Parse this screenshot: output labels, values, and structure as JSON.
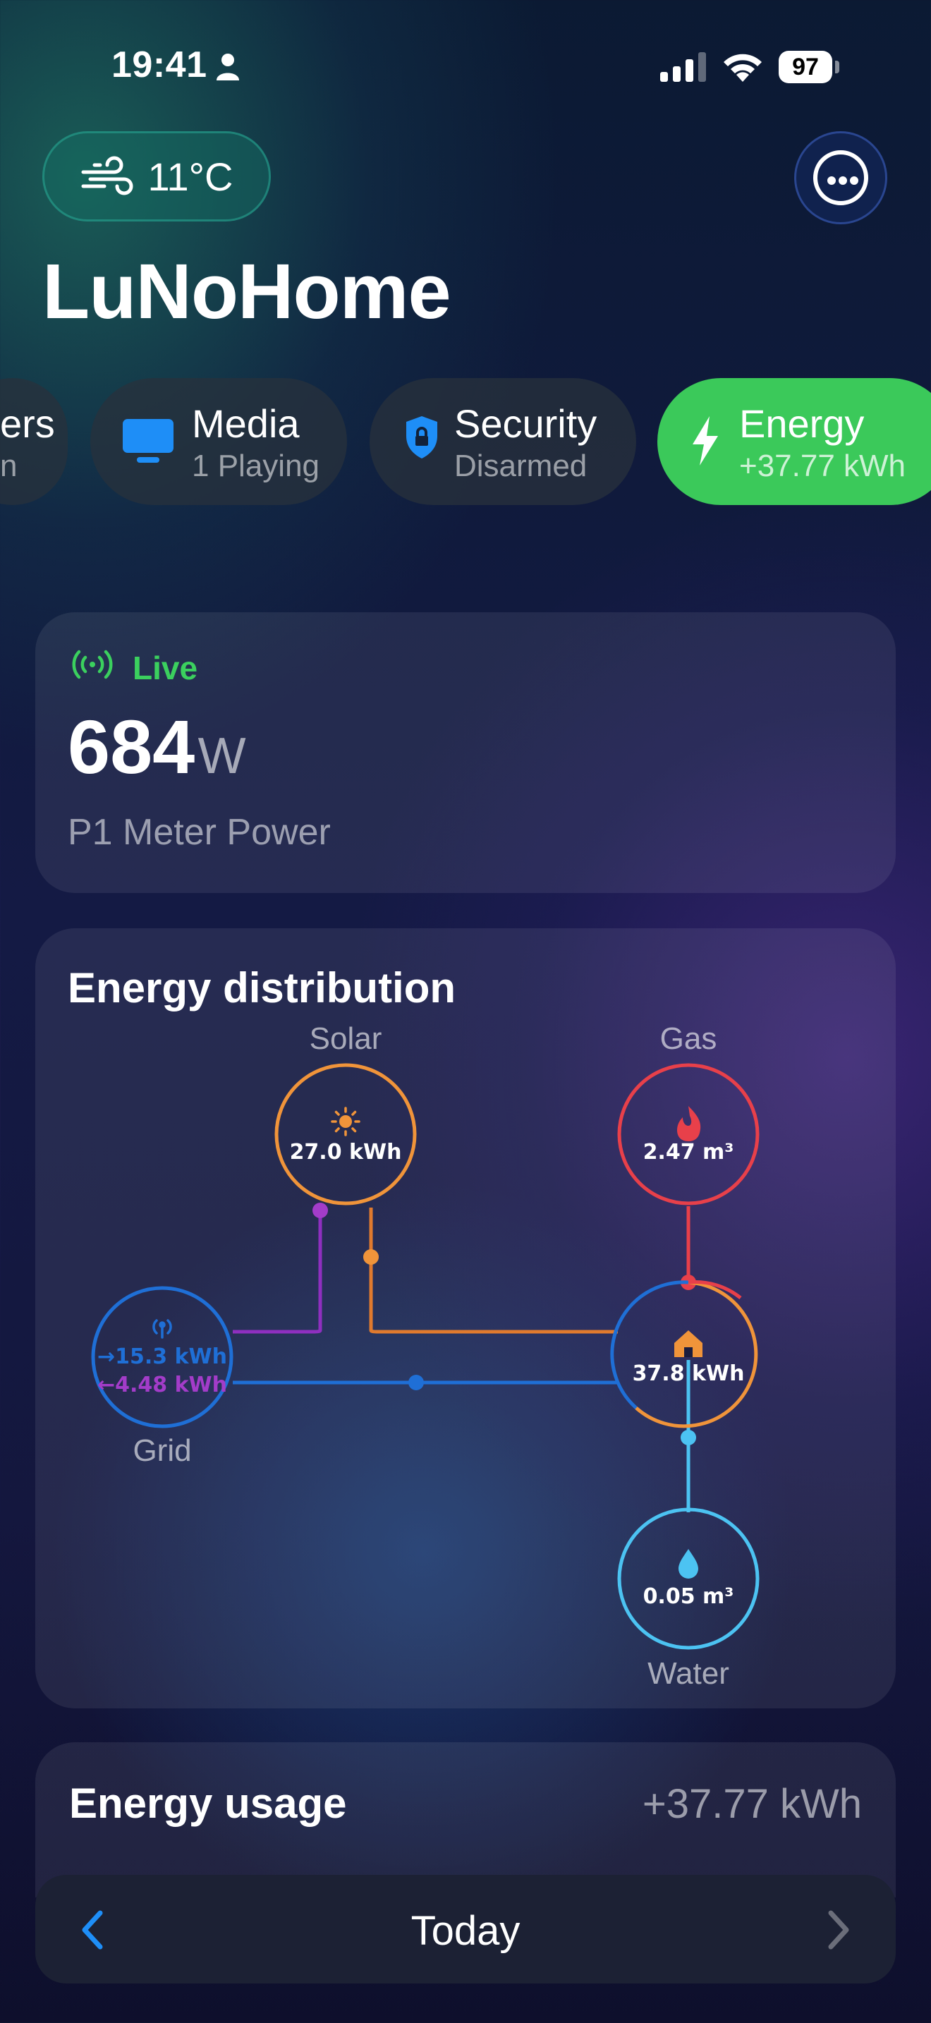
{
  "status_bar": {
    "time": "19:41",
    "battery": "97"
  },
  "header": {
    "weather": {
      "icon": "wind-icon",
      "temperature": "11°C"
    },
    "menu_icon": "ellipsis-circle-icon",
    "title": "LuNoHome"
  },
  "categories": [
    {
      "label": "ers",
      "sub": "n",
      "icon": ""
    },
    {
      "label": "Media",
      "sub": "1 Playing",
      "icon": "tv-icon",
      "color": "#1e8ef7"
    },
    {
      "label": "Security",
      "sub": "Disarmed",
      "icon": "shield-lock-icon",
      "color": "#1e8ef7"
    },
    {
      "label": "Energy",
      "sub": "+37.77 kWh",
      "icon": "bolt-icon",
      "active": true,
      "color": "#3bc95a"
    }
  ],
  "live_card": {
    "badge": "Live",
    "value": "684",
    "unit": "W",
    "label": "P1 Meter Power"
  },
  "distribution": {
    "title": "Energy distribution",
    "solar": {
      "label": "Solar",
      "value": "27.0 kWh",
      "color": "#f0943a"
    },
    "gas": {
      "label": "Gas",
      "value": "2.47 m³",
      "color": "#e8404a"
    },
    "grid": {
      "label": "Grid",
      "in": "→15.3 kWh",
      "out": "←4.48 kWh",
      "color": "#1f6fd6",
      "out_color": "#a33cc9"
    },
    "home": {
      "value": "37.8 kWh"
    },
    "water": {
      "label": "Water",
      "value": "0.05 m³",
      "color": "#4cc3f2"
    }
  },
  "usage": {
    "title": "Energy usage",
    "value": "+37.77 kWh"
  },
  "date_nav": {
    "label": "Today"
  }
}
